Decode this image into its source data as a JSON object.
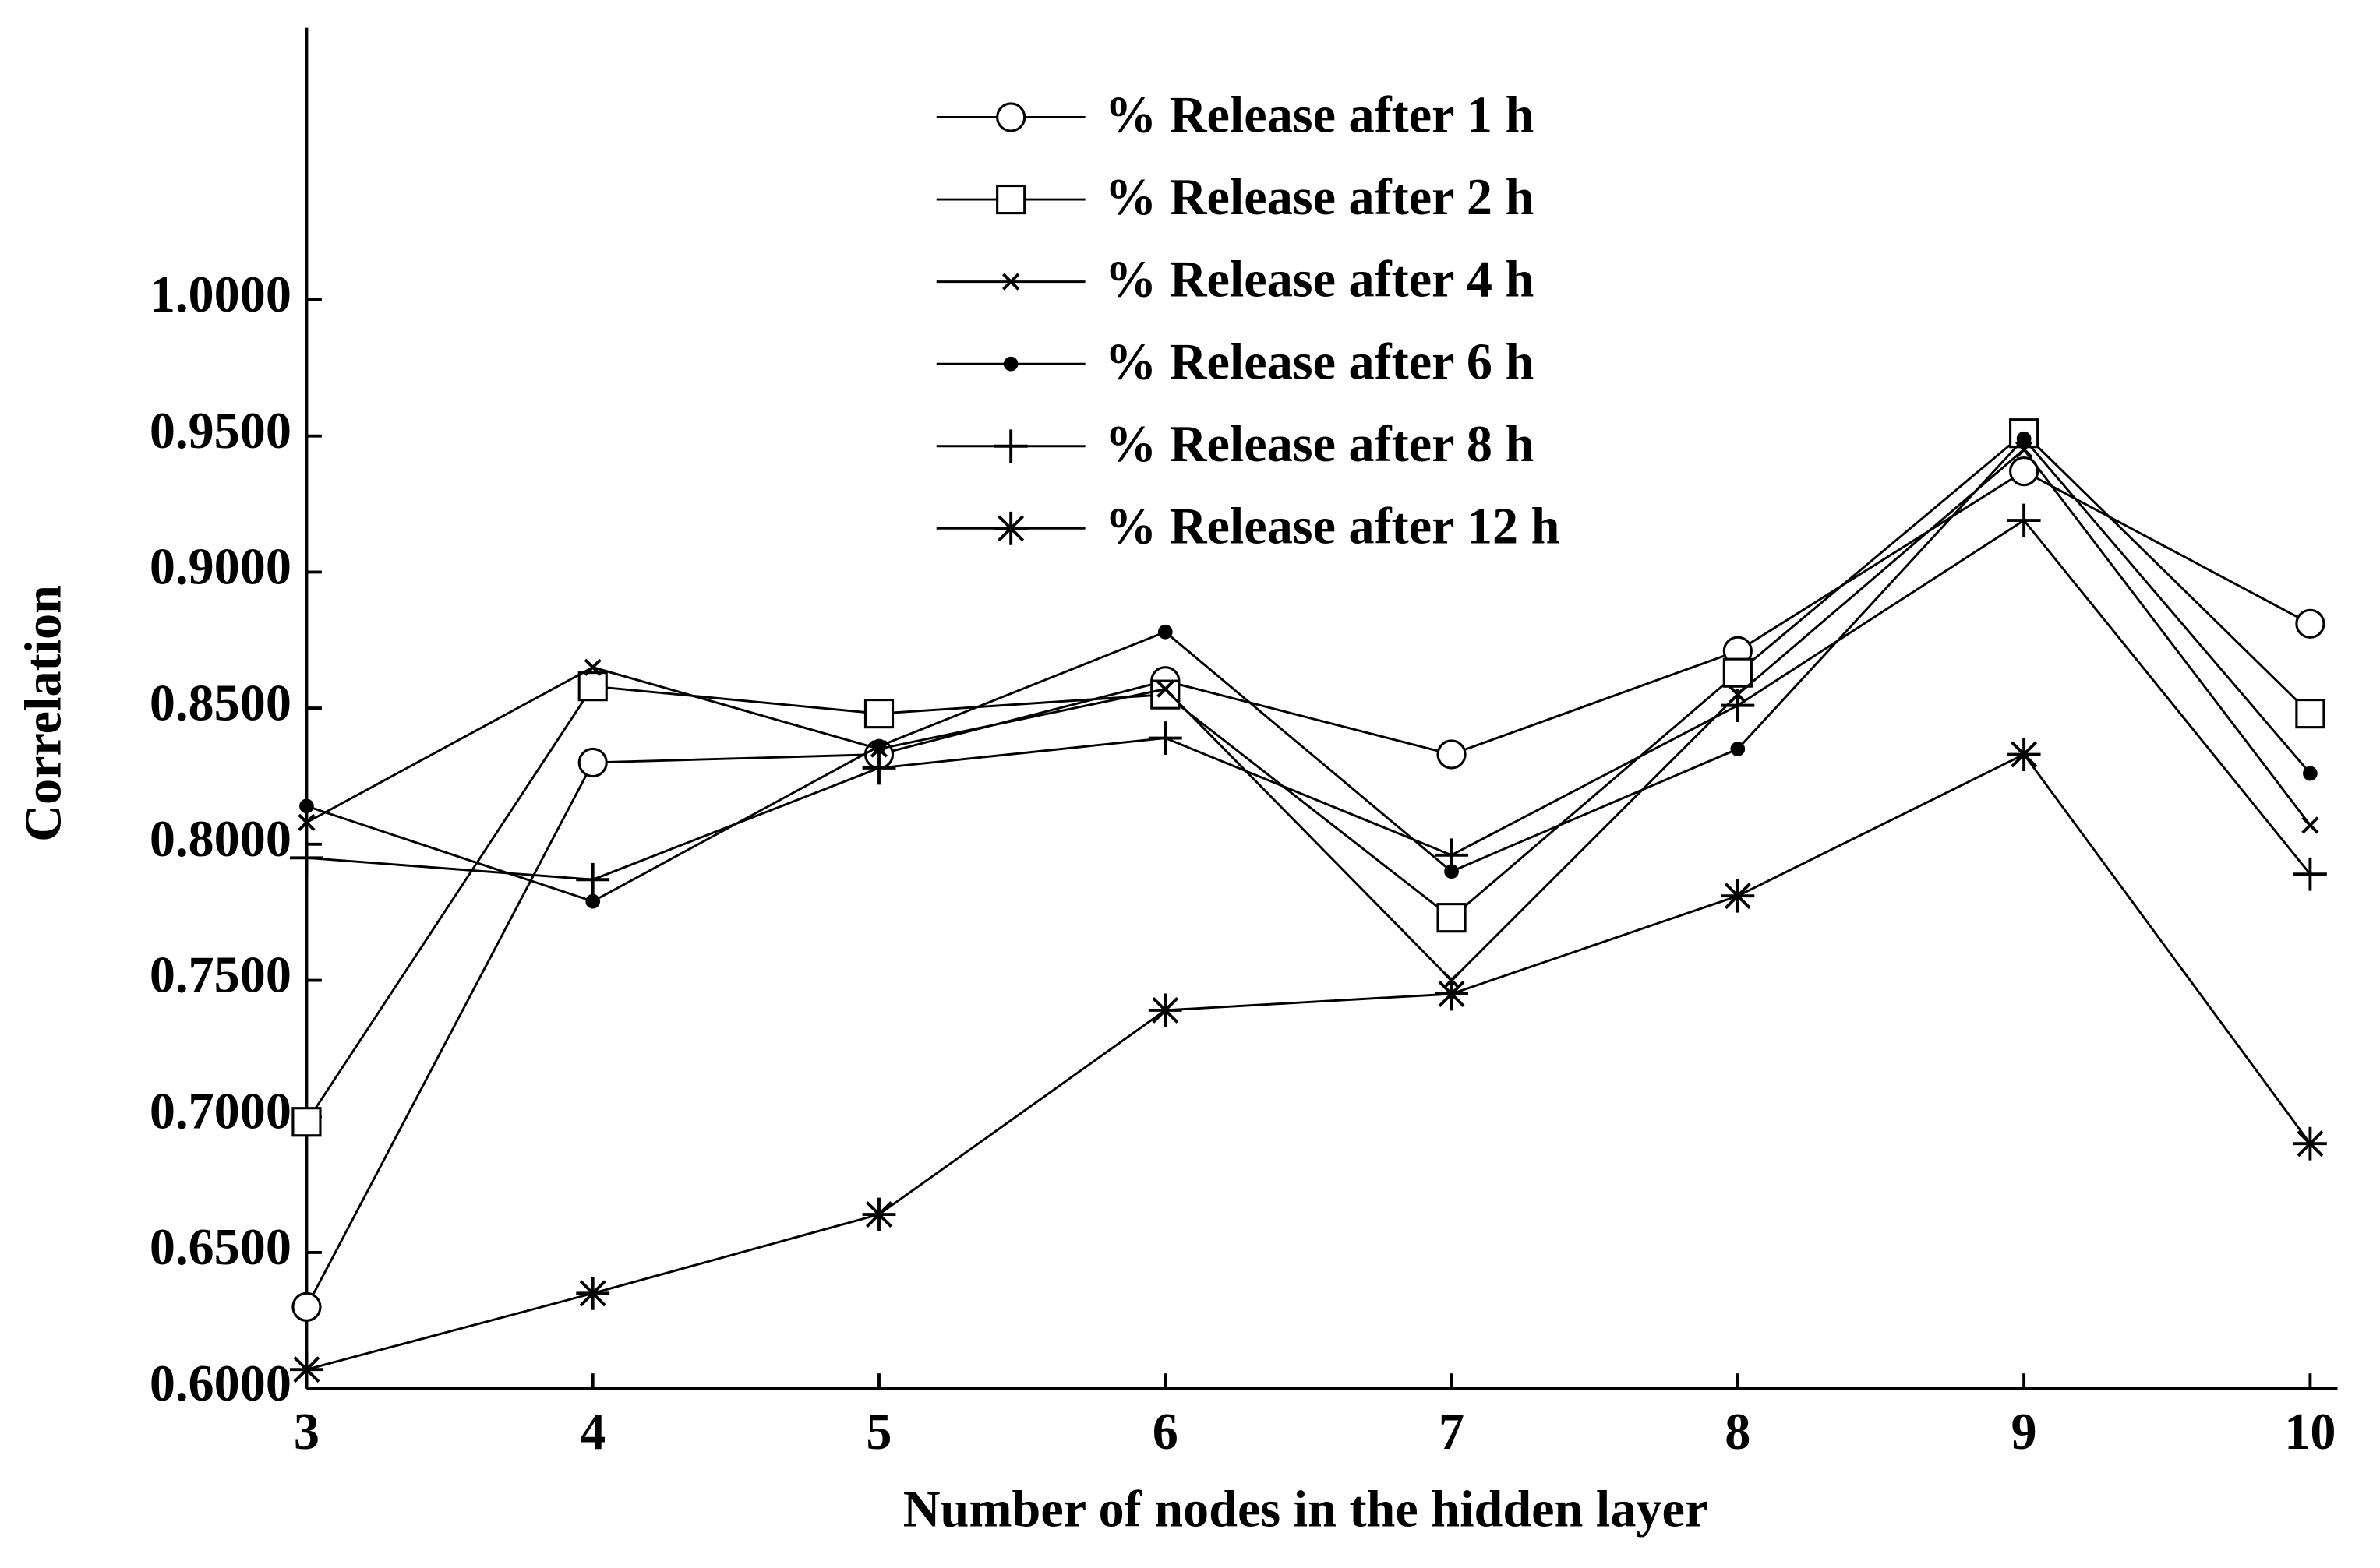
{
  "chart_data": {
    "type": "line",
    "x_label": "Number of nodes in the hidden layer",
    "y_label": "Correlation",
    "x": [
      3,
      4,
      5,
      6,
      7,
      8,
      9,
      10
    ],
    "xlim": [
      3,
      10
    ],
    "xticks": [
      3,
      4,
      5,
      6,
      7,
      8,
      9,
      10
    ],
    "ylim": [
      0.6,
      1.1
    ],
    "yticks": [
      {
        "value": 0.6,
        "label": "0.6000"
      },
      {
        "value": 0.65,
        "label": "0.6500"
      },
      {
        "value": 0.7,
        "label": "0.7000"
      },
      {
        "value": 0.75,
        "label": "0.7500"
      },
      {
        "value": 0.8,
        "label": "0.8000"
      },
      {
        "value": 0.85,
        "label": "0.8500"
      },
      {
        "value": 0.9,
        "label": "0.9000"
      },
      {
        "value": 0.95,
        "label": "0.9500"
      },
      {
        "value": 1.0,
        "label": "1.0000"
      }
    ],
    "grid": false,
    "legend": "top",
    "series": [
      {
        "name": "% Release after 1 h",
        "color": "#000000",
        "marker": "circle",
        "values": [
          0.63,
          0.83,
          0.833,
          0.86,
          0.833,
          0.871,
          0.937,
          0.881
        ]
      },
      {
        "name": "% Release after 2 h",
        "color": "#000000",
        "marker": "square",
        "values": [
          0.698,
          0.858,
          0.848,
          0.855,
          0.773,
          0.863,
          0.951,
          0.848
        ]
      },
      {
        "name": "% Release after 4 h",
        "color": "#000000",
        "marker": "x",
        "values": [
          0.808,
          0.865,
          0.835,
          0.857,
          0.75,
          0.855,
          0.945,
          0.807
        ]
      },
      {
        "name": "% Release after 6 h",
        "color": "#000000",
        "marker": "dot",
        "values": [
          0.814,
          0.779,
          0.836,
          0.878,
          0.79,
          0.835,
          0.949,
          0.826
        ]
      },
      {
        "name": "% Release after 8 h",
        "color": "#000000",
        "marker": "plus",
        "values": [
          0.795,
          0.787,
          0.828,
          0.839,
          0.796,
          0.851,
          0.919,
          0.789
        ]
      },
      {
        "name": "% Release after 12 h",
        "color": "#000000",
        "marker": "star",
        "values": [
          0.607,
          0.635,
          0.664,
          0.739,
          0.745,
          0.781,
          0.833,
          0.69
        ]
      }
    ]
  }
}
